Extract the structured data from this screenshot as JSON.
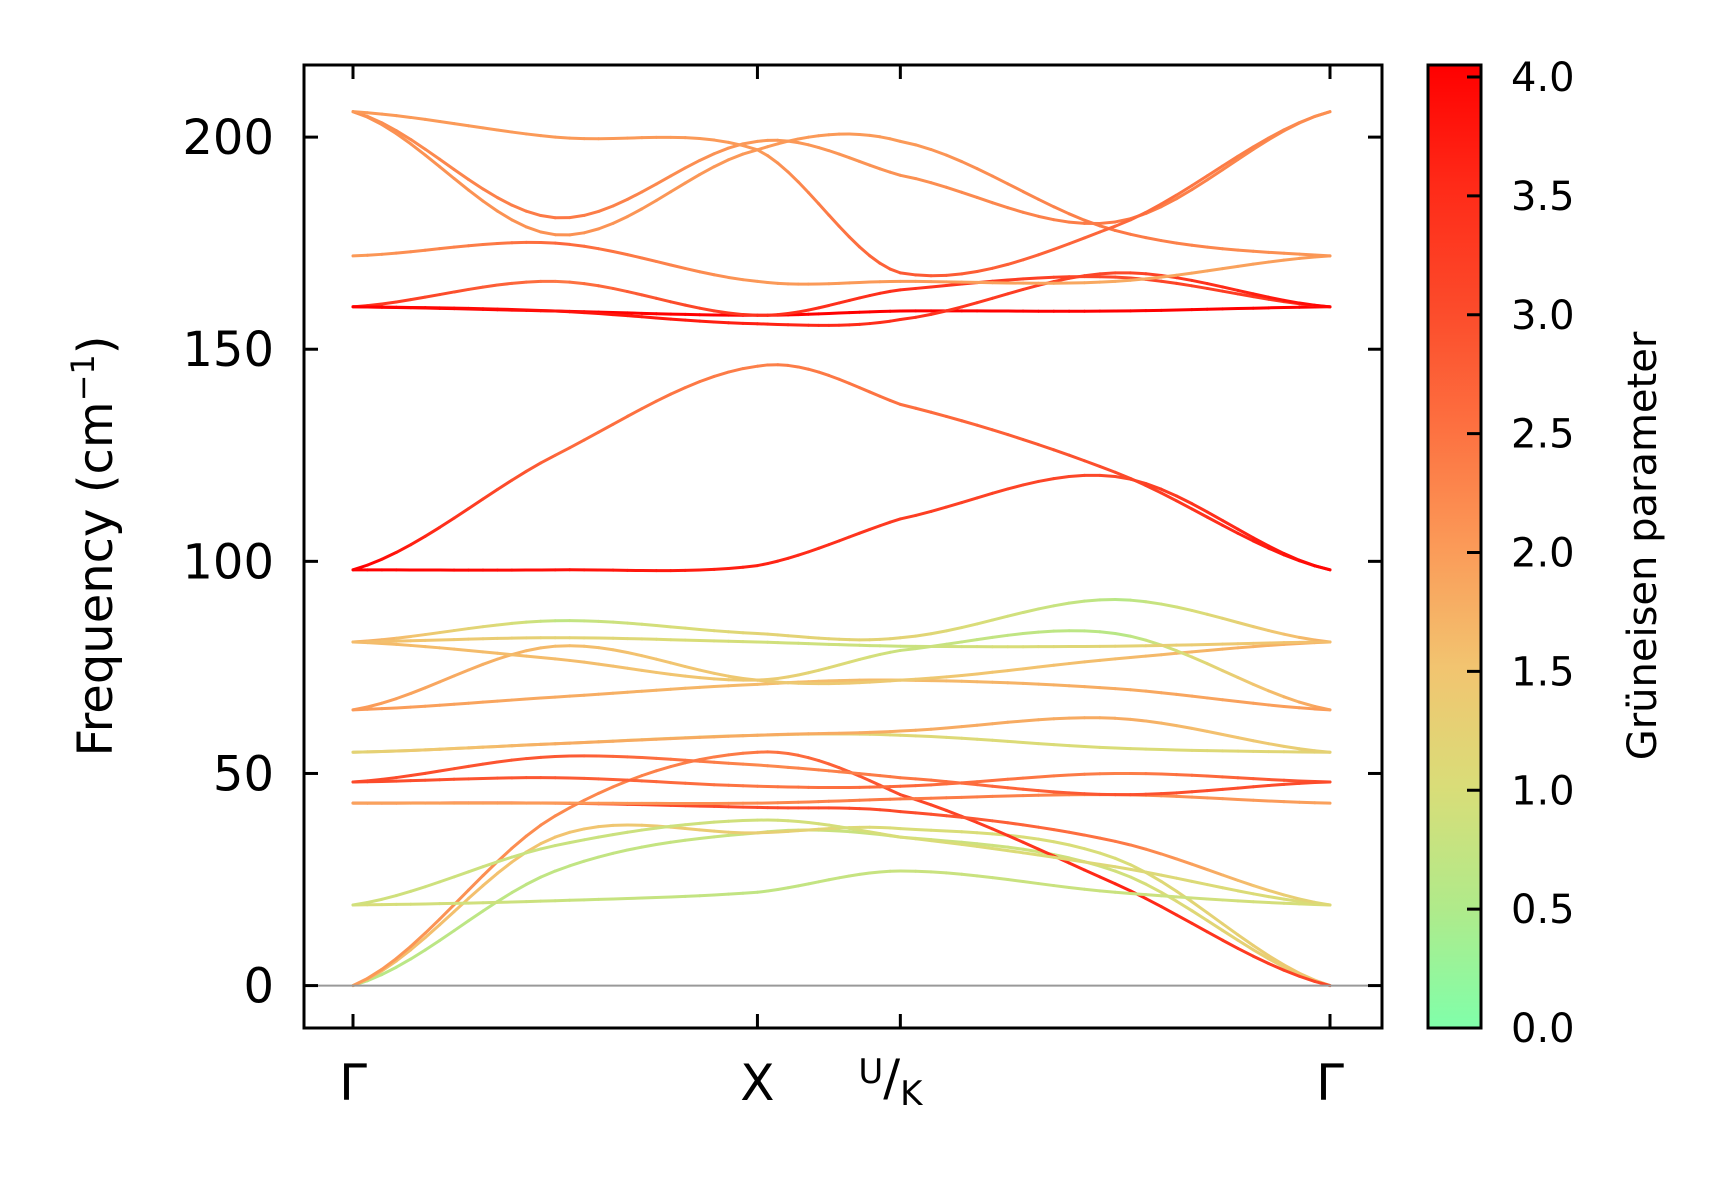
{
  "chart_data": {
    "type": "line",
    "ylabel": "Frequency (cm",
    "ylabel_sup": "−1",
    "ylabel_close": ")",
    "ylim": [
      -10,
      217
    ],
    "yticks": [
      0,
      50,
      100,
      150,
      200
    ],
    "ytick_labels": [
      "0",
      "50",
      "100",
      "150",
      "200"
    ],
    "x_segments": [
      {
        "from": "Γ",
        "to": "X",
        "length": 0.866
      },
      {
        "from": "U",
        "to": "Γ",
        "length": 0.919
      }
    ],
    "x_range": [
      0,
      2.092
    ],
    "xticks": [
      {
        "pos": 0,
        "label": "Γ"
      },
      {
        "pos": 0.866,
        "label": "X"
      },
      {
        "pos": 1.172,
        "label": "U",
        "label_b": "K"
      },
      {
        "pos": 2.092,
        "label": "Γ"
      }
    ],
    "zero_line": 0,
    "colorbar": {
      "label": "Grüneisen parameter",
      "range": [
        0,
        4.0
      ],
      "ticks": [
        "0.0",
        "0.5",
        "1.0",
        "1.5",
        "2.0",
        "2.5",
        "3.0",
        "3.5",
        "4.0"
      ],
      "colors": [
        "#80ffaa",
        "#b0ea8a",
        "#d9dd78",
        "#f2c470",
        "#fb9a58",
        "#fd7040",
        "#fc4a2a",
        "#ff2a18",
        "#ff0000"
      ]
    },
    "bands": [
      {
        "x": [
          0,
          0.433,
          0.866,
          1.172,
          1.632,
          2.092
        ],
        "y": [
          0,
          27,
          36,
          35,
          27,
          0
        ],
        "g": [
          0.6,
          0.7,
          0.8,
          0.8,
          0.9,
          1.5
        ]
      },
      {
        "x": [
          0,
          0.433,
          0.866,
          1.172,
          1.632,
          2.092
        ],
        "y": [
          0,
          35,
          36,
          37,
          30,
          0
        ],
        "g": [
          1.6,
          1.5,
          1.3,
          1.0,
          1.0,
          1.5
        ]
      },
      {
        "x": [
          0,
          0.433,
          0.866,
          1.172,
          1.632,
          2.092
        ],
        "y": [
          0,
          40,
          55,
          45,
          24,
          0
        ],
        "g": [
          2.0,
          2.2,
          2.4,
          3.0,
          3.6,
          3.0
        ]
      },
      {
        "x": [
          0,
          0.433,
          0.866,
          1.172,
          1.632,
          2.092
        ],
        "y": [
          19,
          20,
          22,
          27,
          22,
          19
        ],
        "g": [
          1.0,
          0.8,
          0.7,
          0.8,
          0.8,
          1.0
        ]
      },
      {
        "x": [
          0,
          0.433,
          0.866,
          1.172,
          1.632,
          2.092
        ],
        "y": [
          19,
          33,
          39,
          35,
          28,
          19
        ],
        "g": [
          0.9,
          0.8,
          0.9,
          1.0,
          1.1,
          1.0
        ]
      },
      {
        "x": [
          0,
          0.433,
          0.866,
          1.172,
          1.632,
          2.092
        ],
        "y": [
          43,
          43,
          42,
          41,
          34,
          19
        ],
        "g": [
          3.0,
          3.0,
          3.0,
          3.0,
          2.4,
          1.0
        ]
      },
      {
        "x": [
          0,
          0.433,
          0.866,
          1.172,
          1.632,
          2.092
        ],
        "y": [
          43,
          43,
          43,
          44,
          45,
          43
        ],
        "g": [
          1.9,
          2.0,
          2.2,
          2.4,
          2.2,
          1.9
        ]
      },
      {
        "x": [
          0,
          0.433,
          0.866,
          1.172,
          1.632,
          2.092
        ],
        "y": [
          48,
          49,
          47,
          47,
          50,
          48
        ],
        "g": [
          3.0,
          2.8,
          2.4,
          2.6,
          2.3,
          3.0
        ]
      },
      {
        "x": [
          0,
          0.433,
          0.866,
          1.172,
          1.632,
          2.092
        ],
        "y": [
          48,
          54,
          52,
          49,
          45,
          48
        ],
        "g": [
          3.0,
          2.8,
          2.2,
          2.4,
          2.9,
          3.0
        ]
      },
      {
        "x": [
          0,
          0.433,
          0.866,
          1.172,
          1.632,
          2.092
        ],
        "y": [
          55,
          57,
          59,
          59,
          56,
          55
        ],
        "g": [
          1.2,
          1.2,
          1.2,
          1.1,
          1.0,
          1.2
        ]
      },
      {
        "x": [
          0,
          0.433,
          0.866,
          1.172,
          1.632,
          2.092
        ],
        "y": [
          55,
          57,
          59,
          60,
          63,
          55
        ],
        "g": [
          1.2,
          1.8,
          1.8,
          1.8,
          1.8,
          1.2
        ]
      },
      {
        "x": [
          0,
          0.433,
          0.866,
          1.172,
          1.632,
          2.092
        ],
        "y": [
          65,
          68,
          71,
          72,
          70,
          65
        ],
        "g": [
          2.0,
          1.8,
          1.6,
          1.6,
          1.8,
          2.0
        ]
      },
      {
        "x": [
          0,
          0.433,
          0.866,
          1.172,
          1.632,
          2.092
        ],
        "y": [
          65,
          80,
          72,
          72,
          77,
          81
        ],
        "g": [
          2.0,
          1.6,
          1.4,
          1.4,
          1.6,
          1.8
        ]
      },
      {
        "x": [
          0,
          0.433,
          0.866,
          1.172,
          1.632,
          2.092
        ],
        "y": [
          81,
          77,
          72,
          79,
          83,
          65
        ],
        "g": [
          1.6,
          1.6,
          1.4,
          0.8,
          0.6,
          2.0
        ]
      },
      {
        "x": [
          0,
          0.433,
          0.866,
          1.172,
          1.632,
          2.092
        ],
        "y": [
          81,
          86,
          83,
          82,
          91,
          81
        ],
        "g": [
          1.8,
          0.7,
          1.2,
          1.2,
          0.6,
          1.8
        ]
      },
      {
        "x": [
          0,
          0.433,
          0.866,
          1.172,
          1.632,
          2.092
        ],
        "y": [
          81,
          82,
          81,
          80,
          80,
          81
        ],
        "g": [
          1.6,
          1.2,
          0.9,
          0.8,
          1.2,
          1.6
        ]
      },
      {
        "x": [
          0,
          0.433,
          0.866,
          1.172,
          1.632,
          2.092
        ],
        "y": [
          98,
          125,
          146,
          137,
          121,
          98
        ],
        "g": [
          4.0,
          2.6,
          2.3,
          2.5,
          3.0,
          4.0
        ]
      },
      {
        "x": [
          0,
          0.433,
          0.866,
          1.172,
          1.632,
          2.092
        ],
        "y": [
          98,
          98,
          99,
          110,
          120,
          98
        ],
        "g": [
          4.0,
          3.8,
          3.6,
          3.2,
          3.0,
          4.0
        ]
      },
      {
        "x": [
          0,
          0.433,
          0.866,
          1.172,
          1.632,
          2.092
        ],
        "y": [
          160,
          159,
          158,
          159,
          159,
          160
        ],
        "g": [
          4.0,
          4.0,
          4.0,
          4.0,
          4.0,
          4.0
        ]
      },
      {
        "x": [
          0,
          0.433,
          0.866,
          1.172,
          1.632,
          2.092
        ],
        "y": [
          160,
          166,
          158,
          164,
          167,
          160
        ],
        "g": [
          3.4,
          2.4,
          3.4,
          3.4,
          3.0,
          3.4
        ]
      },
      {
        "x": [
          0,
          0.433,
          0.866,
          1.172,
          1.632,
          2.092
        ],
        "y": [
          160,
          159,
          156,
          157,
          168,
          160
        ],
        "g": [
          4.0,
          3.8,
          3.6,
          3.4,
          3.0,
          4.0
        ]
      },
      {
        "x": [
          0,
          0.433,
          0.866,
          1.172,
          1.632,
          2.092
        ],
        "y": [
          172,
          175,
          166,
          166,
          166,
          172
        ],
        "g": [
          2.0,
          2.6,
          2.0,
          2.0,
          1.8,
          2.0
        ]
      },
      {
        "x": [
          0,
          0.433,
          0.866,
          1.172,
          1.632,
          2.092
        ],
        "y": [
          206,
          181,
          199,
          191,
          180,
          206
        ],
        "g": [
          2.1,
          2.4,
          2.0,
          2.1,
          2.4,
          2.1
        ]
      },
      {
        "x": [
          0,
          0.433,
          0.866,
          1.172,
          1.632,
          2.092
        ],
        "y": [
          206,
          177,
          197,
          199,
          178,
          172
        ],
        "g": [
          2.1,
          2.1,
          2.0,
          2.0,
          2.4,
          2.0
        ]
      },
      {
        "x": [
          0,
          0.433,
          0.866,
          1.172,
          1.632,
          2.092
        ],
        "y": [
          206,
          200,
          197,
          168,
          179,
          206
        ],
        "g": [
          2.0,
          2.0,
          2.0,
          2.8,
          2.6,
          2.1
        ]
      }
    ]
  }
}
